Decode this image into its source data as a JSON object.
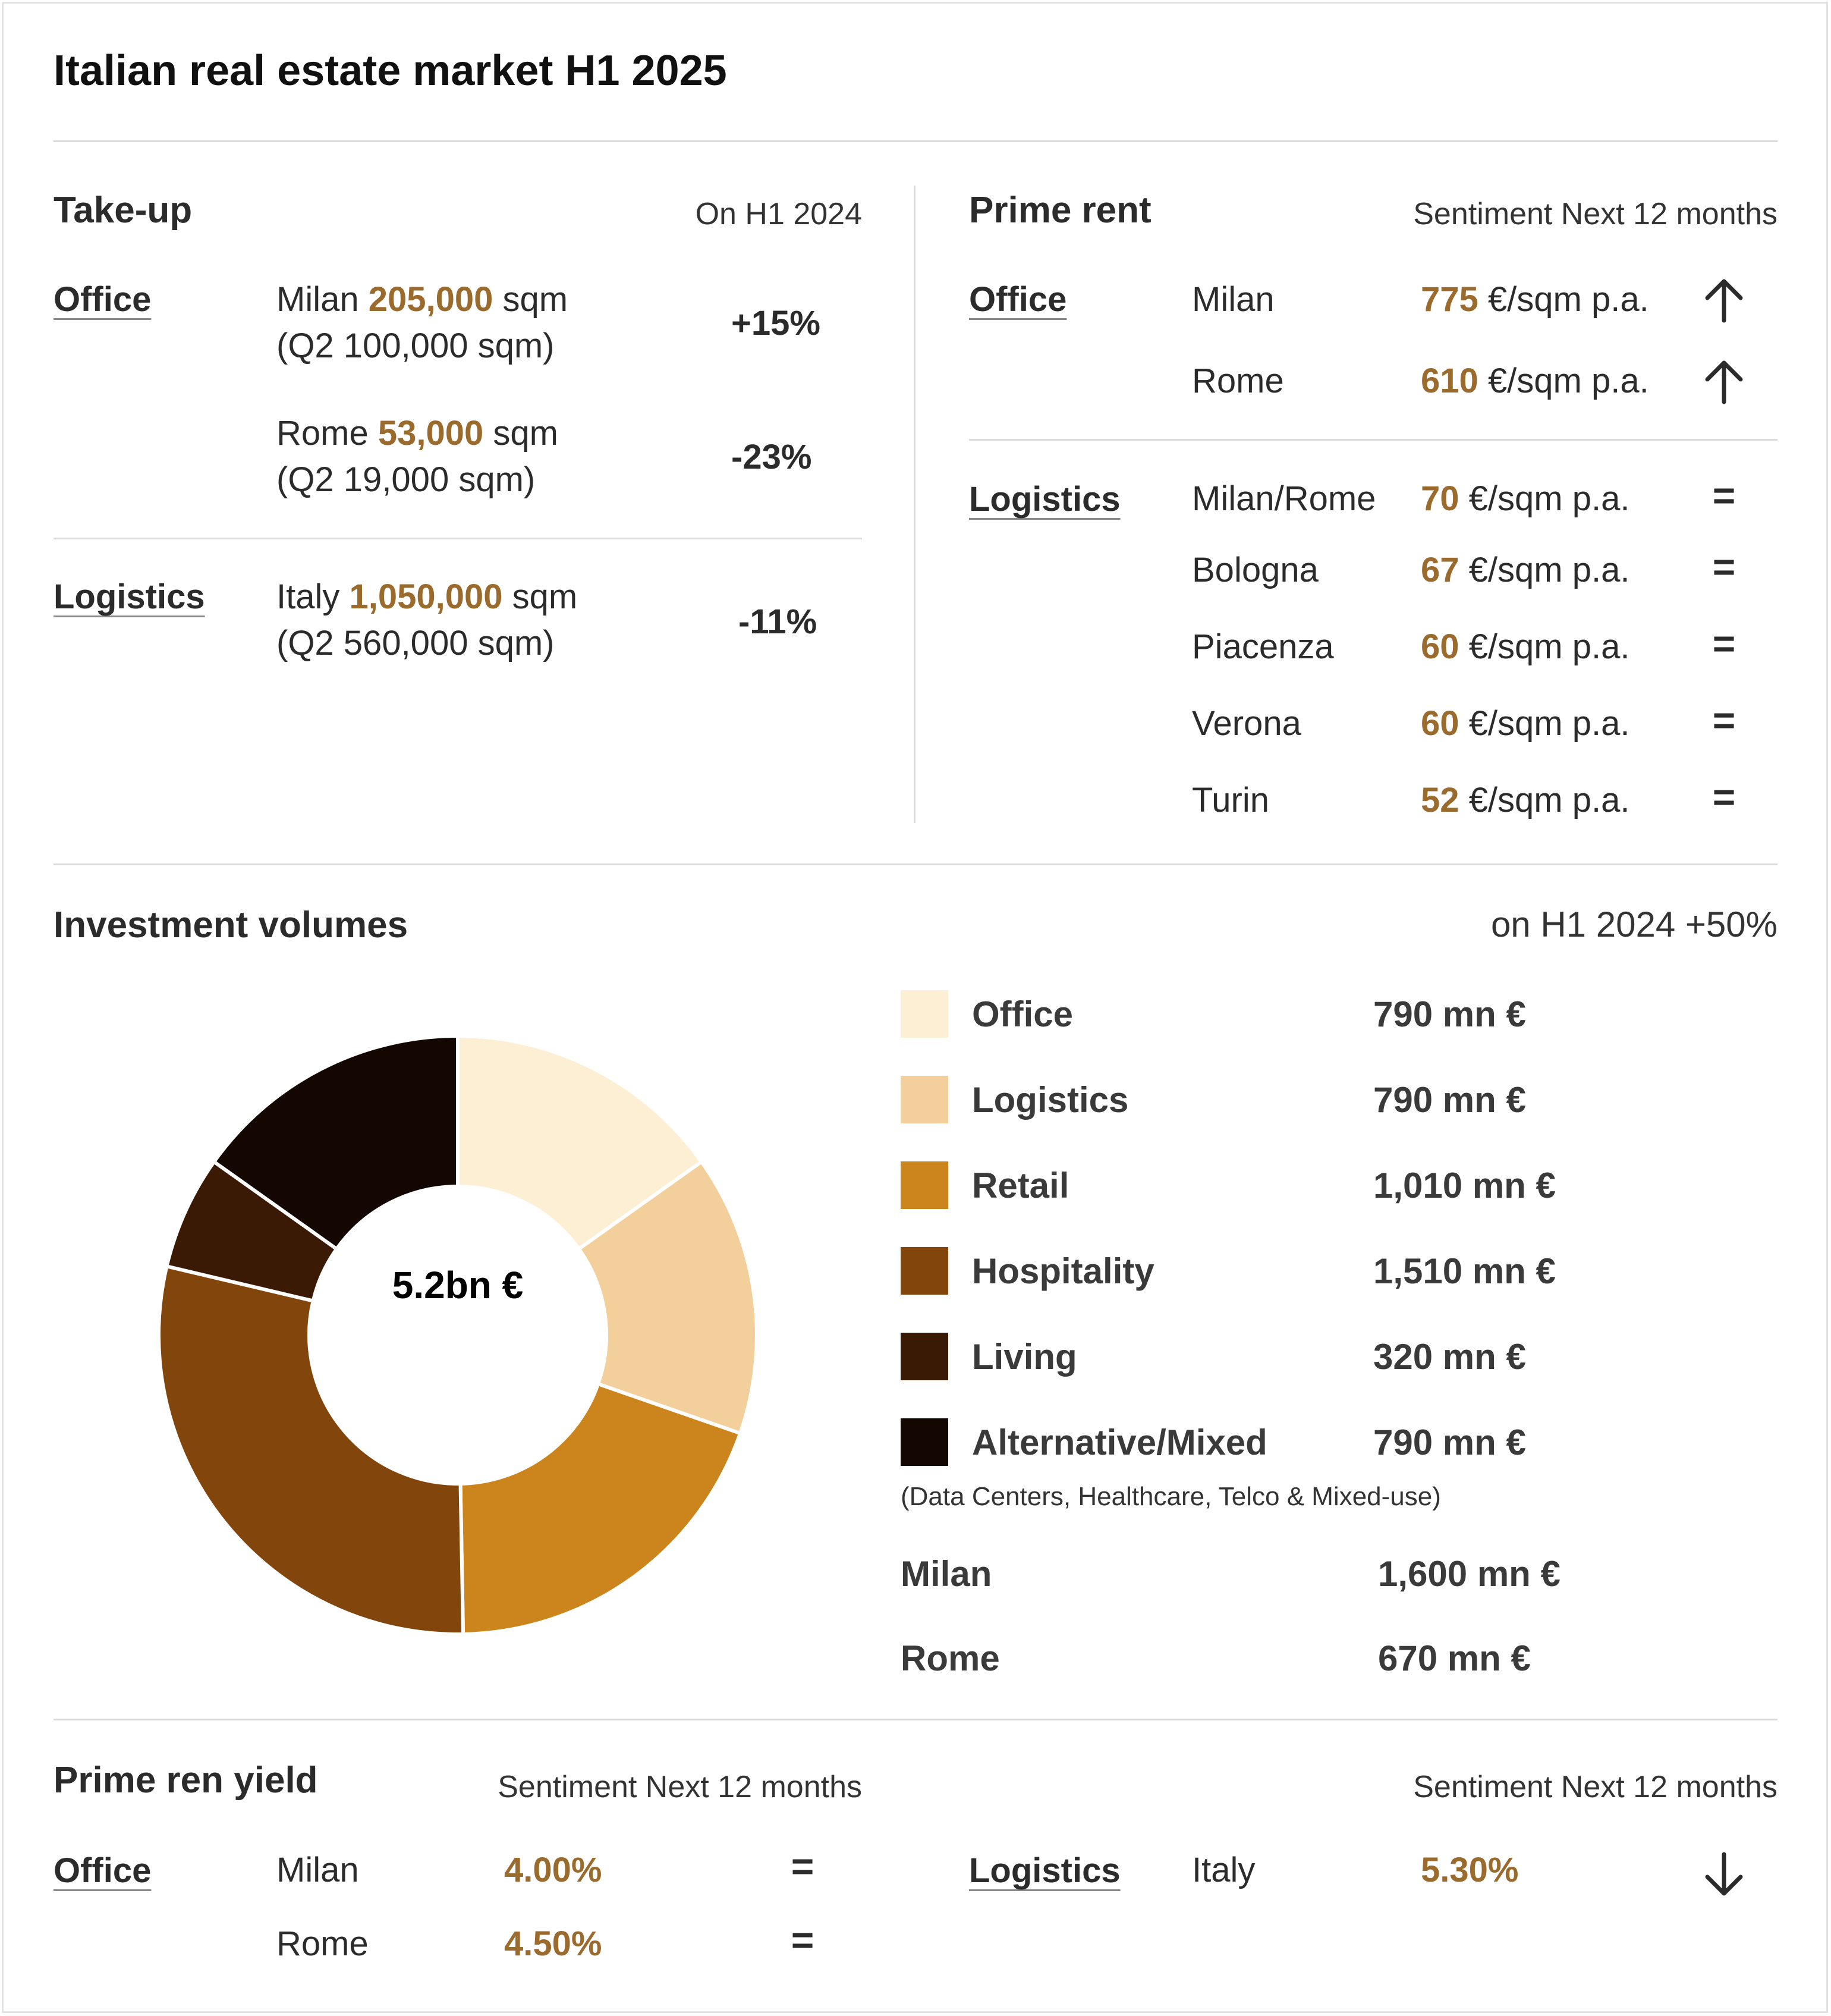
{
  "title": "Italian real estate market H1 2025",
  "takeup": {
    "heading": "Take-up",
    "note": "On H1 2024",
    "office_label": "Office",
    "milan": {
      "city": "Milan",
      "value": "205,000",
      "unit": "sqm",
      "q2": "(Q2 100,000 sqm)",
      "change": "+15%"
    },
    "rome": {
      "city": "Rome",
      "value": "53,000",
      "unit": "sqm",
      "q2": "(Q2 19,000 sqm)",
      "change": "-23%"
    },
    "logistics_label": "Logistics",
    "italy": {
      "city": "Italy",
      "value": "1,050,000",
      "unit": "sqm",
      "q2": "(Q2 560,000 sqm)",
      "change": "-11%"
    }
  },
  "prime_rent": {
    "heading": "Prime rent",
    "note": "Sentiment Next 12 months",
    "office_label": "Office",
    "logistics_label": "Logistics",
    "office_rows": [
      {
        "city": "Milan",
        "value": "775",
        "unit": "€/sqm p.a.",
        "sentiment": "up-arrow-icon"
      },
      {
        "city": "Rome",
        "value": "610",
        "unit": "€/sqm p.a.",
        "sentiment": "up-arrow-icon"
      }
    ],
    "logistics_rows": [
      {
        "city": "Milan/Rome",
        "value": "70",
        "unit": "€/sqm p.a.",
        "sentiment": "="
      },
      {
        "city": "Bologna",
        "value": "67",
        "unit": "€/sqm p.a.",
        "sentiment": "="
      },
      {
        "city": "Piacenza",
        "value": "60",
        "unit": "€/sqm p.a.",
        "sentiment": "="
      },
      {
        "city": "Verona",
        "value": "60",
        "unit": "€/sqm p.a.",
        "sentiment": "="
      },
      {
        "city": "Turin",
        "value": "52",
        "unit": "€/sqm p.a.",
        "sentiment": "="
      }
    ]
  },
  "investment": {
    "heading": "Investment volumes",
    "note": "on H1 2024 +50%",
    "total": "5.2bn €",
    "legend": [
      {
        "label": "Office",
        "value": "790 mn €",
        "color": "#fdefd3"
      },
      {
        "label": "Logistics",
        "value": "790 mn €",
        "color": "#f3cf9b"
      },
      {
        "label": "Retail",
        "value": "1,010 mn €",
        "color": "#cc851c"
      },
      {
        "label": "Hospitality",
        "value": "1,510 mn €",
        "color": "#82450c"
      },
      {
        "label": "Living",
        "value": "320 mn €",
        "color": "#3b1a05"
      },
      {
        "label": "Alternative/Mixed",
        "value": "790 mn €",
        "color": "#140701"
      }
    ],
    "alt_note": "(Data Centers, Healthcare, Telco & Mixed-use)",
    "milan": {
      "label": "Milan",
      "value": "1,600 mn €"
    },
    "rome": {
      "label": "Rome",
      "value": "670 mn €"
    }
  },
  "chart_data": {
    "type": "pie",
    "categories": [
      "Office",
      "Logistics",
      "Retail",
      "Hospitality",
      "Living",
      "Alternative/Mixed"
    ],
    "values": [
      790,
      790,
      1010,
      1510,
      320,
      790
    ],
    "title": "",
    "center_label": "5.2bn €"
  },
  "yield": {
    "heading": "Prime ren yield",
    "note_left": "Sentiment Next 12 months",
    "note_right": "Sentiment Next 12 months",
    "office_label": "Office",
    "logistics_label": "Logistics",
    "office_rows": [
      {
        "city": "Milan",
        "value": "4.00%",
        "sentiment": "="
      },
      {
        "city": "Rome",
        "value": "4.50%",
        "sentiment": "="
      }
    ],
    "logistics_rows": [
      {
        "city": "Italy",
        "value": "5.30%",
        "sentiment": "down-arrow-icon"
      }
    ]
  }
}
